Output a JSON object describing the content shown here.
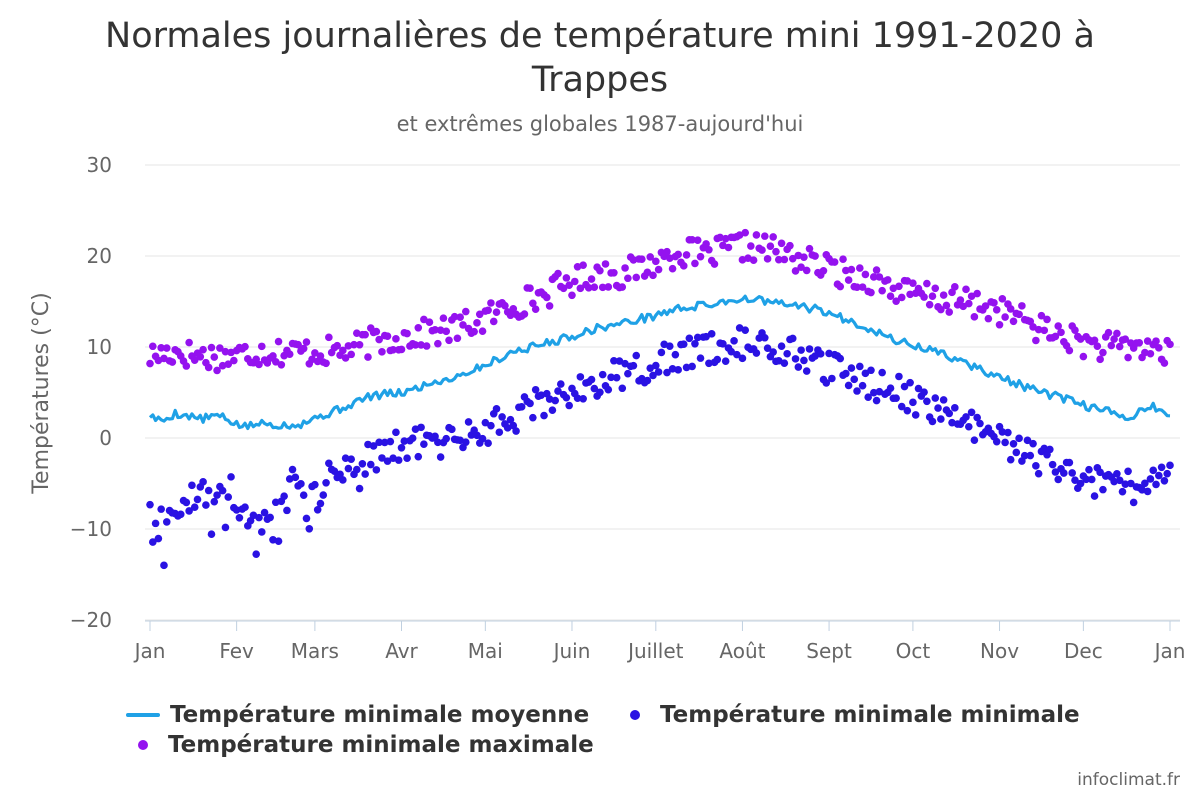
{
  "title": "Normales journalières de température mini 1991-2020 à Trappes",
  "subtitle": "et extrêmes globales 1987-aujourd'hui",
  "credit": "infoclimat.fr",
  "legend": {
    "mean_label": "Température minimale moyenne",
    "min_label": "Température minimale minimale",
    "max_label": "Température minimale maximale"
  },
  "colors": {
    "mean": "#1fa1e6",
    "min": "#2a12e3",
    "max": "#9412ef",
    "grid": "#e6e6e6",
    "axis": "#c0d0e0"
  },
  "chart_data": {
    "type": "line",
    "xlabel": "",
    "ylabel": "Températures (°C)",
    "ylim": [
      -20,
      30
    ],
    "yticks": [
      -20,
      -10,
      0,
      10,
      20,
      30
    ],
    "grid": true,
    "legend_position": "bottom",
    "x_unit": "day of year",
    "xlim": [
      1,
      366
    ],
    "month_ticks": [
      {
        "label": "Jan",
        "day": 1
      },
      {
        "label": "Fev",
        "day": 32
      },
      {
        "label": "Mars",
        "day": 60
      },
      {
        "label": "Avr",
        "day": 91
      },
      {
        "label": "Mai",
        "day": 121
      },
      {
        "label": "Juin",
        "day": 152
      },
      {
        "label": "Juillet",
        "day": 182
      },
      {
        "label": "Août",
        "day": 213
      },
      {
        "label": "Sept",
        "day": 244
      },
      {
        "label": "Oct",
        "day": 274
      },
      {
        "label": "Nov",
        "day": 305
      },
      {
        "label": "Dec",
        "day": 335
      },
      {
        "label": "Jan",
        "day": 366
      }
    ],
    "series": [
      {
        "name": "Température minimale moyenne",
        "type": "line",
        "anchors": [
          [
            1,
            2.5
          ],
          [
            5,
            1.8
          ],
          [
            10,
            2.7
          ],
          [
            15,
            2.4
          ],
          [
            20,
            2.1
          ],
          [
            25,
            2.5
          ],
          [
            30,
            1.8
          ],
          [
            35,
            1.2
          ],
          [
            40,
            1.6
          ],
          [
            45,
            1.5
          ],
          [
            50,
            1.4
          ],
          [
            55,
            1.6
          ],
          [
            60,
            2.2
          ],
          [
            65,
            2.7
          ],
          [
            70,
            3.3
          ],
          [
            75,
            4.0
          ],
          [
            80,
            4.6
          ],
          [
            85,
            4.8
          ],
          [
            90,
            4.9
          ],
          [
            95,
            5.3
          ],
          [
            100,
            5.9
          ],
          [
            105,
            6.3
          ],
          [
            110,
            6.7
          ],
          [
            115,
            7.3
          ],
          [
            120,
            7.9
          ],
          [
            125,
            8.6
          ],
          [
            130,
            9.4
          ],
          [
            135,
            9.8
          ],
          [
            140,
            10.2
          ],
          [
            145,
            10.6
          ],
          [
            150,
            11.0
          ],
          [
            155,
            11.5
          ],
          [
            160,
            12.0
          ],
          [
            165,
            12.3
          ],
          [
            170,
            12.6
          ],
          [
            175,
            13.0
          ],
          [
            180,
            13.3
          ],
          [
            185,
            13.8
          ],
          [
            190,
            14.2
          ],
          [
            195,
            14.4
          ],
          [
            200,
            14.6
          ],
          [
            205,
            14.9
          ],
          [
            210,
            15.2
          ],
          [
            215,
            15.3
          ],
          [
            220,
            15.1
          ],
          [
            225,
            14.8
          ],
          [
            230,
            14.6
          ],
          [
            235,
            14.4
          ],
          [
            240,
            14.1
          ],
          [
            245,
            13.6
          ],
          [
            250,
            13.0
          ],
          [
            255,
            12.5
          ],
          [
            260,
            11.8
          ],
          [
            265,
            11.1
          ],
          [
            270,
            10.5
          ],
          [
            275,
            10.1
          ],
          [
            280,
            9.7
          ],
          [
            285,
            9.2
          ],
          [
            290,
            8.6
          ],
          [
            295,
            7.9
          ],
          [
            300,
            7.3
          ],
          [
            305,
            6.7
          ],
          [
            310,
            6.1
          ],
          [
            315,
            5.5
          ],
          [
            320,
            5.0
          ],
          [
            325,
            4.6
          ],
          [
            330,
            4.1
          ],
          [
            335,
            3.6
          ],
          [
            340,
            3.2
          ],
          [
            345,
            2.8
          ],
          [
            350,
            2.0
          ],
          [
            355,
            3.0
          ],
          [
            360,
            3.5
          ],
          [
            366,
            2.3
          ]
        ]
      },
      {
        "name": "Température minimale minimale",
        "type": "scatter",
        "anchors": [
          [
            1,
            -6.5
          ],
          [
            6,
            -9.5
          ],
          [
            12,
            -8.0
          ],
          [
            18,
            -5.5
          ],
          [
            24,
            -6.0
          ],
          [
            30,
            -5.5
          ],
          [
            36,
            -8.5
          ],
          [
            42,
            -9.5
          ],
          [
            48,
            -6.0
          ],
          [
            55,
            -4.5
          ],
          [
            60,
            -6.5
          ],
          [
            66,
            -3.5
          ],
          [
            75,
            -3.0
          ],
          [
            85,
            -1.5
          ],
          [
            95,
            -0.5
          ],
          [
            105,
            -0.5
          ],
          [
            115,
            0.5
          ],
          [
            125,
            1.5
          ],
          [
            135,
            3.0
          ],
          [
            145,
            4.5
          ],
          [
            155,
            5.5
          ],
          [
            165,
            6.5
          ],
          [
            175,
            7.5
          ],
          [
            185,
            8.5
          ],
          [
            195,
            9.5
          ],
          [
            205,
            10.0
          ],
          [
            212,
            10.5
          ],
          [
            220,
            10.0
          ],
          [
            230,
            9.5
          ],
          [
            240,
            8.0
          ],
          [
            250,
            7.0
          ],
          [
            260,
            6.0
          ],
          [
            270,
            5.0
          ],
          [
            280,
            3.5
          ],
          [
            290,
            2.0
          ],
          [
            300,
            0.5
          ],
          [
            310,
            -1.0
          ],
          [
            320,
            -2.5
          ],
          [
            330,
            -4.0
          ],
          [
            340,
            -5.0
          ],
          [
            350,
            -5.5
          ],
          [
            360,
            -5.0
          ],
          [
            366,
            -4.5
          ]
        ]
      },
      {
        "name": "Température minimale maximale",
        "type": "scatter",
        "anchors": [
          [
            1,
            9.0
          ],
          [
            10,
            9.5
          ],
          [
            20,
            9.0
          ],
          [
            30,
            9.0
          ],
          [
            40,
            9.5
          ],
          [
            50,
            9.5
          ],
          [
            60,
            9.5
          ],
          [
            70,
            9.5
          ],
          [
            80,
            10.5
          ],
          [
            90,
            11.0
          ],
          [
            100,
            11.5
          ],
          [
            110,
            12.0
          ],
          [
            120,
            13.0
          ],
          [
            130,
            14.5
          ],
          [
            140,
            15.5
          ],
          [
            150,
            17.0
          ],
          [
            160,
            18.0
          ],
          [
            170,
            18.0
          ],
          [
            180,
            19.0
          ],
          [
            190,
            20.5
          ],
          [
            200,
            20.0
          ],
          [
            210,
            21.0
          ],
          [
            220,
            21.0
          ],
          [
            230,
            20.0
          ],
          [
            240,
            19.0
          ],
          [
            250,
            18.0
          ],
          [
            260,
            17.5
          ],
          [
            270,
            16.0
          ],
          [
            280,
            15.5
          ],
          [
            290,
            15.0
          ],
          [
            300,
            14.5
          ],
          [
            310,
            13.5
          ],
          [
            320,
            12.0
          ],
          [
            330,
            11.0
          ],
          [
            340,
            10.0
          ],
          [
            350,
            10.0
          ],
          [
            360,
            10.0
          ],
          [
            366,
            9.0
          ]
        ]
      }
    ]
  }
}
